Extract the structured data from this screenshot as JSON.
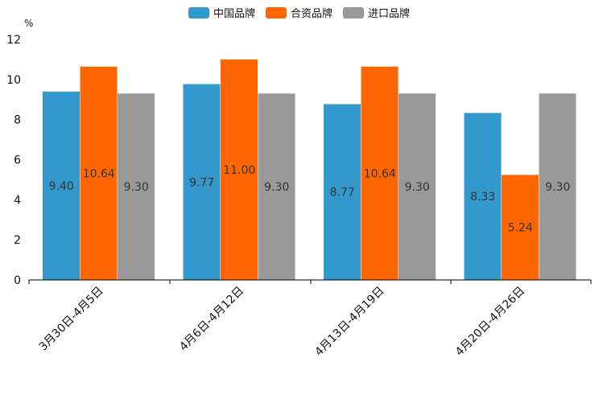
{
  "chart_data": {
    "type": "bar",
    "title": "",
    "xlabel": "",
    "ylabel": "",
    "unit": "%",
    "ylim": [
      0,
      12
    ],
    "yticks": [
      0,
      2,
      4,
      6,
      8,
      10,
      12
    ],
    "grid": false,
    "legend_position": "top-center",
    "categories": [
      "3月30日-4月5日",
      "4月6日-4月12日",
      "4月13日-4月19日",
      "4月20日-4月26日"
    ],
    "series": [
      {
        "name": "中国品牌",
        "color": "#3399cc",
        "values": [
          9.4,
          9.77,
          8.77,
          8.33
        ],
        "labels": [
          "9.40",
          "9.77",
          "8.77",
          "8.33"
        ]
      },
      {
        "name": "合资品牌",
        "color": "#ff6600",
        "values": [
          10.64,
          11.0,
          10.64,
          5.24
        ],
        "labels": [
          "10.64",
          "11.00",
          "10.64",
          "5.24"
        ]
      },
      {
        "name": "进口品牌",
        "color": "#999999",
        "values": [
          9.3,
          9.3,
          9.3,
          9.3
        ],
        "labels": [
          "9.30",
          "9.30",
          "9.30",
          "9.30"
        ]
      }
    ]
  }
}
